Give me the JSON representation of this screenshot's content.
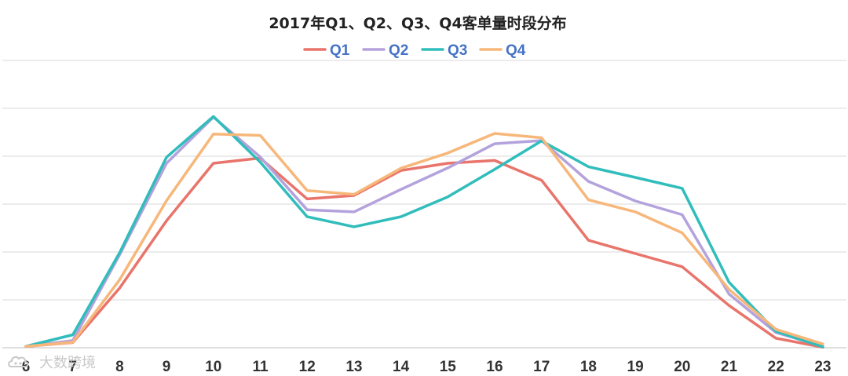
{
  "chart_data": {
    "type": "line",
    "title": "2017年Q1、Q2、Q3、Q4客单量时段分布",
    "xlabel": "",
    "ylabel": "",
    "categories": [
      "6",
      "7",
      "8",
      "9",
      "10",
      "11",
      "12",
      "13",
      "14",
      "15",
      "16",
      "17",
      "18",
      "19",
      "20",
      "21",
      "22",
      "23"
    ],
    "ylim": [
      0,
      100
    ],
    "gridlines": 5,
    "grid": true,
    "legend_position": "top-center",
    "series": [
      {
        "name": "Q1",
        "color": "#e8746b",
        "values": [
          0.5,
          1.8,
          20.8,
          44.2,
          64.2,
          66.0,
          51.8,
          53.0,
          61.7,
          64.2,
          65.2,
          58.3,
          37.4,
          32.8,
          28.2,
          14.7,
          3.3,
          0.2
        ]
      },
      {
        "name": "Q2",
        "color": "#b3a2dc",
        "values": [
          0.5,
          2.5,
          32.4,
          64.2,
          80.3,
          66.4,
          48.0,
          47.3,
          55.1,
          62.6,
          71.0,
          72.1,
          57.9,
          51.1,
          46.3,
          18.7,
          5.3,
          0.5
        ]
      },
      {
        "name": "Q3",
        "color": "#30bdbb",
        "values": [
          0.5,
          4.5,
          33.1,
          66.3,
          80.5,
          64.6,
          45.6,
          42.1,
          45.6,
          52.5,
          62.1,
          72.0,
          63.0,
          59.3,
          55.5,
          22.8,
          5.7,
          0.3
        ]
      },
      {
        "name": "Q4",
        "color": "#f7b77a",
        "values": [
          0.5,
          1.9,
          23.7,
          51.2,
          74.4,
          73.9,
          54.7,
          53.4,
          62.5,
          67.8,
          74.6,
          73.1,
          51.5,
          47.3,
          40.0,
          20.3,
          6.4,
          1.3
        ]
      }
    ]
  },
  "watermark": {
    "text": "大数跨境",
    "icon": "cloud-logo-icon"
  }
}
